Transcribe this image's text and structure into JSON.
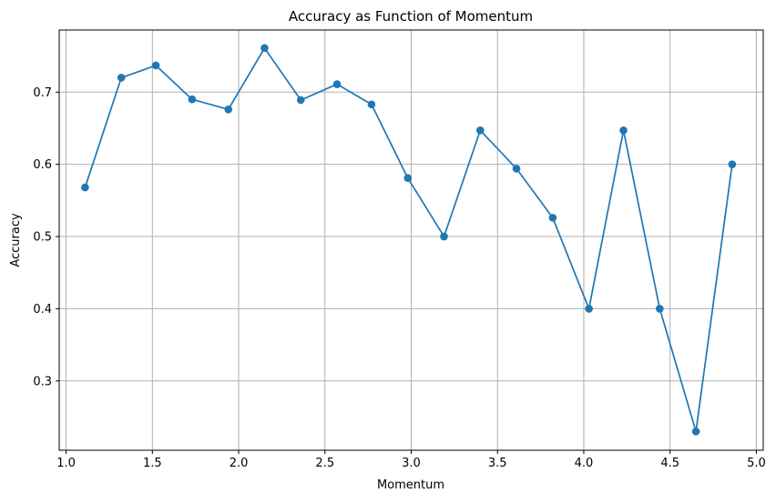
{
  "chart_data": {
    "type": "line",
    "title": "Accuracy as Function of Momentum",
    "xlabel": "Momentum",
    "ylabel": "Accuracy",
    "xlim": [
      0.96,
      5.04
    ],
    "ylim": [
      0.204,
      0.786
    ],
    "xticks": [
      1.0,
      1.5,
      2.0,
      2.5,
      3.0,
      3.5,
      4.0,
      4.5,
      5.0
    ],
    "xtick_labels": [
      "1.0",
      "1.5",
      "2.0",
      "2.5",
      "3.0",
      "3.5",
      "4.0",
      "4.5",
      "5.0"
    ],
    "yticks": [
      0.3,
      0.4,
      0.5,
      0.6,
      0.7
    ],
    "ytick_labels": [
      "0.3",
      "0.4",
      "0.5",
      "0.6",
      "0.7"
    ],
    "grid": true,
    "line_color": "#1f77b4",
    "marker": "circle",
    "series": [
      {
        "x": [
          1.11,
          1.32,
          1.52,
          1.73,
          1.94,
          2.15,
          2.36,
          2.57,
          2.77,
          2.98,
          3.19,
          3.4,
          3.61,
          3.82,
          4.03,
          4.23,
          4.44,
          4.65,
          4.86
        ],
        "values": [
          0.568,
          0.72,
          0.737,
          0.69,
          0.676,
          0.761,
          0.689,
          0.711,
          0.683,
          0.581,
          0.5,
          0.647,
          0.594,
          0.526,
          0.4,
          0.647,
          0.4,
          0.23,
          0.6
        ]
      }
    ]
  }
}
